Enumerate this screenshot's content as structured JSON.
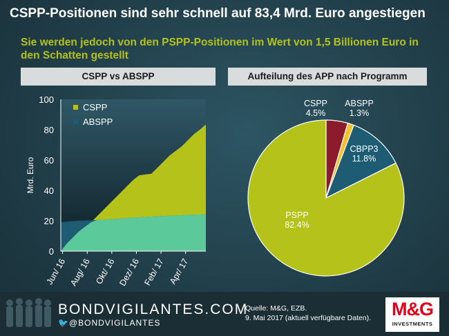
{
  "title": "CSPP-Positionen sind sehr schnell auf 83,4 Mrd. Euro angestiegen",
  "subtitle": "Sie werden jedoch von den PSPP-Positionen im Wert von 1,5 Billionen Euro in den Schatten gestellt",
  "left_panel": {
    "header": "CSPP vs ABSPP"
  },
  "right_panel": {
    "header": "Aufteilung des APP nach Programm"
  },
  "footer": {
    "brand": "BONDVIGILANTES.COM",
    "twitter": "@BONDVIGILANTES",
    "source_line1": "Quelle: M&G, EZB.",
    "source_line2": "9. Mai 2017 (aktuell verfügbare Daten).",
    "logo_main": "M&G",
    "logo_sub": "INVESTMENTS"
  },
  "colors": {
    "cspp": "#b4c21a",
    "abspp": "#1e5c74",
    "abspp_over": "#5cc99a",
    "pspp": "#b4c21a",
    "cbpp3": "#1e5c74",
    "cspp_pie": "#8c1c2b",
    "abspp_pie": "#f2c12e"
  },
  "chart_data": [
    {
      "type": "area",
      "title": "CSPP vs ABSPP",
      "ylabel": "Mrd. Euro",
      "xlabel": "",
      "ylim": [
        0,
        100
      ],
      "yticks": [
        "0",
        "20",
        "40",
        "60",
        "80",
        "100"
      ],
      "xticks": [
        "Jun/ 16",
        "Aug/ 16",
        "Okt/ 16",
        "Dez/ 16",
        "Feb/ 17",
        "Apr/ 17"
      ],
      "x": [
        0,
        2,
        4,
        6,
        8,
        10,
        12,
        14,
        16,
        18,
        20,
        22,
        24,
        26,
        28,
        30,
        32,
        34,
        36,
        38,
        40,
        42,
        44,
        46,
        48
      ],
      "series": [
        {
          "name": "CSPP",
          "values": [
            0,
            5,
            9,
            13,
            16,
            19,
            23,
            27,
            31,
            35,
            39,
            43,
            47,
            50,
            50.5,
            51,
            55,
            59,
            63,
            66,
            69,
            73,
            77,
            80,
            83.4
          ]
        },
        {
          "name": "ABSPP",
          "values": [
            19,
            19.5,
            19.8,
            20,
            20.2,
            20.3,
            20.5,
            20.7,
            21,
            21.2,
            21.5,
            21.8,
            22,
            22.3,
            22.5,
            22.7,
            22.9,
            23.1,
            23.3,
            23.5,
            23.7,
            23.9,
            24,
            24.1,
            24.2
          ]
        }
      ],
      "legend": [
        "CSPP",
        "ABSPP"
      ],
      "legend_position": "top-left"
    },
    {
      "type": "pie",
      "title": "Aufteilung des APP nach Programm",
      "slices": [
        {
          "name": "CSPP",
          "value": 4.5,
          "label": "4.5%"
        },
        {
          "name": "ABSPP",
          "value": 1.3,
          "label": "1.3%"
        },
        {
          "name": "CBPP3",
          "value": 11.8,
          "label": "11.8%"
        },
        {
          "name": "PSPP",
          "value": 82.4,
          "label": "82.4%"
        }
      ]
    }
  ]
}
